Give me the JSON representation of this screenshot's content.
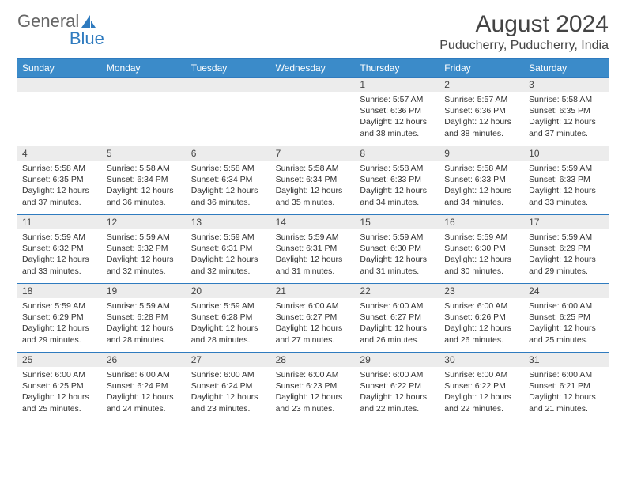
{
  "logo": {
    "text1": "General",
    "text2": "Blue"
  },
  "title": "August 2024",
  "subtitle": "Puducherry, Puducherry, India",
  "colors": {
    "header_bg": "#3b8bc9",
    "rule": "#2f7bbf",
    "daynum_bg": "#ececec",
    "text": "#333333",
    "page_bg": "#ffffff"
  },
  "fonts": {
    "title_pt": 30,
    "subtitle_pt": 16,
    "dayhead_pt": 12,
    "body_pt": 10.5
  },
  "day_headers": [
    "Sunday",
    "Monday",
    "Tuesday",
    "Wednesday",
    "Thursday",
    "Friday",
    "Saturday"
  ],
  "weeks": [
    [
      {
        "n": "",
        "sr": "",
        "ss": "",
        "dl": ""
      },
      {
        "n": "",
        "sr": "",
        "ss": "",
        "dl": ""
      },
      {
        "n": "",
        "sr": "",
        "ss": "",
        "dl": ""
      },
      {
        "n": "",
        "sr": "",
        "ss": "",
        "dl": ""
      },
      {
        "n": "1",
        "sr": "Sunrise: 5:57 AM",
        "ss": "Sunset: 6:36 PM",
        "dl": "Daylight: 12 hours and 38 minutes."
      },
      {
        "n": "2",
        "sr": "Sunrise: 5:57 AM",
        "ss": "Sunset: 6:36 PM",
        "dl": "Daylight: 12 hours and 38 minutes."
      },
      {
        "n": "3",
        "sr": "Sunrise: 5:58 AM",
        "ss": "Sunset: 6:35 PM",
        "dl": "Daylight: 12 hours and 37 minutes."
      }
    ],
    [
      {
        "n": "4",
        "sr": "Sunrise: 5:58 AM",
        "ss": "Sunset: 6:35 PM",
        "dl": "Daylight: 12 hours and 37 minutes."
      },
      {
        "n": "5",
        "sr": "Sunrise: 5:58 AM",
        "ss": "Sunset: 6:34 PM",
        "dl": "Daylight: 12 hours and 36 minutes."
      },
      {
        "n": "6",
        "sr": "Sunrise: 5:58 AM",
        "ss": "Sunset: 6:34 PM",
        "dl": "Daylight: 12 hours and 36 minutes."
      },
      {
        "n": "7",
        "sr": "Sunrise: 5:58 AM",
        "ss": "Sunset: 6:34 PM",
        "dl": "Daylight: 12 hours and 35 minutes."
      },
      {
        "n": "8",
        "sr": "Sunrise: 5:58 AM",
        "ss": "Sunset: 6:33 PM",
        "dl": "Daylight: 12 hours and 34 minutes."
      },
      {
        "n": "9",
        "sr": "Sunrise: 5:58 AM",
        "ss": "Sunset: 6:33 PM",
        "dl": "Daylight: 12 hours and 34 minutes."
      },
      {
        "n": "10",
        "sr": "Sunrise: 5:59 AM",
        "ss": "Sunset: 6:33 PM",
        "dl": "Daylight: 12 hours and 33 minutes."
      }
    ],
    [
      {
        "n": "11",
        "sr": "Sunrise: 5:59 AM",
        "ss": "Sunset: 6:32 PM",
        "dl": "Daylight: 12 hours and 33 minutes."
      },
      {
        "n": "12",
        "sr": "Sunrise: 5:59 AM",
        "ss": "Sunset: 6:32 PM",
        "dl": "Daylight: 12 hours and 32 minutes."
      },
      {
        "n": "13",
        "sr": "Sunrise: 5:59 AM",
        "ss": "Sunset: 6:31 PM",
        "dl": "Daylight: 12 hours and 32 minutes."
      },
      {
        "n": "14",
        "sr": "Sunrise: 5:59 AM",
        "ss": "Sunset: 6:31 PM",
        "dl": "Daylight: 12 hours and 31 minutes."
      },
      {
        "n": "15",
        "sr": "Sunrise: 5:59 AM",
        "ss": "Sunset: 6:30 PM",
        "dl": "Daylight: 12 hours and 31 minutes."
      },
      {
        "n": "16",
        "sr": "Sunrise: 5:59 AM",
        "ss": "Sunset: 6:30 PM",
        "dl": "Daylight: 12 hours and 30 minutes."
      },
      {
        "n": "17",
        "sr": "Sunrise: 5:59 AM",
        "ss": "Sunset: 6:29 PM",
        "dl": "Daylight: 12 hours and 29 minutes."
      }
    ],
    [
      {
        "n": "18",
        "sr": "Sunrise: 5:59 AM",
        "ss": "Sunset: 6:29 PM",
        "dl": "Daylight: 12 hours and 29 minutes."
      },
      {
        "n": "19",
        "sr": "Sunrise: 5:59 AM",
        "ss": "Sunset: 6:28 PM",
        "dl": "Daylight: 12 hours and 28 minutes."
      },
      {
        "n": "20",
        "sr": "Sunrise: 5:59 AM",
        "ss": "Sunset: 6:28 PM",
        "dl": "Daylight: 12 hours and 28 minutes."
      },
      {
        "n": "21",
        "sr": "Sunrise: 6:00 AM",
        "ss": "Sunset: 6:27 PM",
        "dl": "Daylight: 12 hours and 27 minutes."
      },
      {
        "n": "22",
        "sr": "Sunrise: 6:00 AM",
        "ss": "Sunset: 6:27 PM",
        "dl": "Daylight: 12 hours and 26 minutes."
      },
      {
        "n": "23",
        "sr": "Sunrise: 6:00 AM",
        "ss": "Sunset: 6:26 PM",
        "dl": "Daylight: 12 hours and 26 minutes."
      },
      {
        "n": "24",
        "sr": "Sunrise: 6:00 AM",
        "ss": "Sunset: 6:25 PM",
        "dl": "Daylight: 12 hours and 25 minutes."
      }
    ],
    [
      {
        "n": "25",
        "sr": "Sunrise: 6:00 AM",
        "ss": "Sunset: 6:25 PM",
        "dl": "Daylight: 12 hours and 25 minutes."
      },
      {
        "n": "26",
        "sr": "Sunrise: 6:00 AM",
        "ss": "Sunset: 6:24 PM",
        "dl": "Daylight: 12 hours and 24 minutes."
      },
      {
        "n": "27",
        "sr": "Sunrise: 6:00 AM",
        "ss": "Sunset: 6:24 PM",
        "dl": "Daylight: 12 hours and 23 minutes."
      },
      {
        "n": "28",
        "sr": "Sunrise: 6:00 AM",
        "ss": "Sunset: 6:23 PM",
        "dl": "Daylight: 12 hours and 23 minutes."
      },
      {
        "n": "29",
        "sr": "Sunrise: 6:00 AM",
        "ss": "Sunset: 6:22 PM",
        "dl": "Daylight: 12 hours and 22 minutes."
      },
      {
        "n": "30",
        "sr": "Sunrise: 6:00 AM",
        "ss": "Sunset: 6:22 PM",
        "dl": "Daylight: 12 hours and 22 minutes."
      },
      {
        "n": "31",
        "sr": "Sunrise: 6:00 AM",
        "ss": "Sunset: 6:21 PM",
        "dl": "Daylight: 12 hours and 21 minutes."
      }
    ]
  ]
}
